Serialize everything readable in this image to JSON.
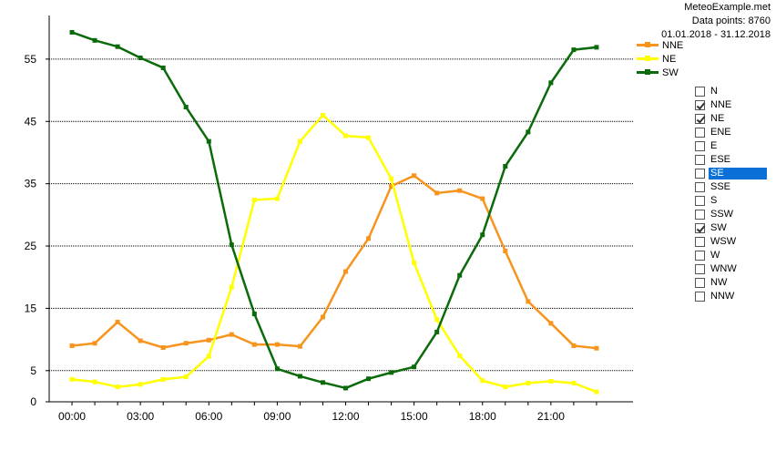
{
  "info": {
    "site": "MeteoExample.met",
    "points": "Data points: 8760",
    "range": "01.01.2018 - 31.12.2018"
  },
  "legend": [
    {
      "name": "NNE",
      "color": "#f7941d"
    },
    {
      "name": "NE",
      "color": "#ffff00"
    },
    {
      "name": "SW",
      "color": "#0b6b0b"
    }
  ],
  "directions": [
    {
      "label": "N",
      "checked": false,
      "selected": false
    },
    {
      "label": "NNE",
      "checked": true,
      "selected": false
    },
    {
      "label": "NE",
      "checked": true,
      "selected": false
    },
    {
      "label": "ENE",
      "checked": false,
      "selected": false
    },
    {
      "label": "E",
      "checked": false,
      "selected": false
    },
    {
      "label": "ESE",
      "checked": false,
      "selected": false
    },
    {
      "label": "SE",
      "checked": false,
      "selected": true
    },
    {
      "label": "SSE",
      "checked": false,
      "selected": false
    },
    {
      "label": "S",
      "checked": false,
      "selected": false
    },
    {
      "label": "SSW",
      "checked": false,
      "selected": false
    },
    {
      "label": "SW",
      "checked": true,
      "selected": false
    },
    {
      "label": "WSW",
      "checked": false,
      "selected": false
    },
    {
      "label": "W",
      "checked": false,
      "selected": false
    },
    {
      "label": "WNW",
      "checked": false,
      "selected": false
    },
    {
      "label": "NW",
      "checked": false,
      "selected": false
    },
    {
      "label": "NNW",
      "checked": false,
      "selected": false
    }
  ],
  "chart_data": {
    "type": "line",
    "x": [
      0,
      1,
      2,
      3,
      4,
      5,
      6,
      7,
      8,
      9,
      10,
      11,
      12,
      13,
      14,
      15,
      16,
      17,
      18,
      19,
      20,
      21,
      22,
      23
    ],
    "xticks": [
      {
        "value": 0,
        "label": "00:00"
      },
      {
        "value": 3,
        "label": "03:00"
      },
      {
        "value": 6,
        "label": "06:00"
      },
      {
        "value": 9,
        "label": "09:00"
      },
      {
        "value": 12,
        "label": "12:00"
      },
      {
        "value": 15,
        "label": "15:00"
      },
      {
        "value": 18,
        "label": "18:00"
      },
      {
        "value": 21,
        "label": "21:00"
      }
    ],
    "yticks": [
      0,
      5,
      15,
      25,
      35,
      45,
      55
    ],
    "ylim": [
      0,
      62
    ],
    "xlim": [
      -1,
      24.6
    ],
    "grid": "horizontal",
    "series": [
      {
        "name": "NNE",
        "color": "#f7941d",
        "values": [
          9.0,
          9.4,
          12.8,
          9.8,
          8.7,
          9.4,
          9.9,
          10.8,
          9.2,
          9.2,
          8.9,
          13.6,
          20.9,
          26.2,
          34.6,
          36.3,
          33.5,
          33.9,
          32.6,
          24.2,
          16.1,
          12.6,
          9.0,
          8.6
        ]
      },
      {
        "name": "NE",
        "color": "#ffff00",
        "values": [
          3.6,
          3.2,
          2.4,
          2.8,
          3.6,
          4.0,
          7.3,
          18.4,
          32.4,
          32.6,
          41.8,
          46.0,
          42.7,
          42.4,
          35.8,
          22.3,
          13.2,
          7.4,
          3.4,
          2.4,
          3.0,
          3.3,
          3.0,
          1.6
        ]
      },
      {
        "name": "SW",
        "color": "#0b6b0b",
        "values": [
          59.3,
          58.0,
          57.0,
          55.2,
          53.6,
          47.3,
          41.8,
          25.2,
          14.1,
          5.3,
          4.1,
          3.1,
          2.2,
          3.7,
          4.7,
          5.6,
          11.2,
          20.3,
          26.8,
          37.8,
          43.3,
          51.2,
          56.5,
          56.9
        ]
      }
    ]
  }
}
